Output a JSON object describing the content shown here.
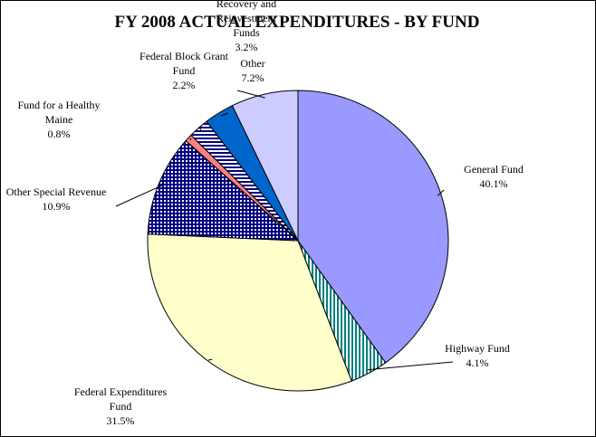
{
  "chart_data": {
    "type": "pie",
    "title": "FY 2008 ACTUAL EXPENDITURES - BY FUND",
    "slices": [
      {
        "label": [
          "General Fund"
        ],
        "pct": "40.1%",
        "value": 40.1,
        "color": "#9999ff",
        "pattern": "solid"
      },
      {
        "label": [
          "Highway Fund"
        ],
        "pct": "4.1%",
        "value": 4.1,
        "color": "#008080",
        "pattern": "vertical-lines"
      },
      {
        "label": [
          "Federal Expenditures",
          "Fund"
        ],
        "pct": "31.5%",
        "value": 31.5,
        "color": "#ffffcc",
        "pattern": "solid"
      },
      {
        "label": [
          "Other Special Revenue"
        ],
        "pct": "10.9%",
        "value": 10.9,
        "color": "#000080",
        "pattern": "grid"
      },
      {
        "label": [
          "Fund for a Healthy",
          "Maine"
        ],
        "pct": "0.8%",
        "value": 0.8,
        "color": "#ff8080",
        "pattern": "solid"
      },
      {
        "label": [
          "Federal Block Grant",
          "Fund"
        ],
        "pct": "2.2%",
        "value": 2.2,
        "color": "#000080",
        "pattern": "horizontal-lines"
      },
      {
        "label": [
          "Recovery and",
          "Reinvestment",
          "Funds"
        ],
        "pct": "3.2%",
        "value": 3.2,
        "color": "#0066cc",
        "pattern": "solid"
      },
      {
        "label": [
          "Other"
        ],
        "pct": "7.2%",
        "value": 7.2,
        "color": "#ccccff",
        "pattern": "solid"
      }
    ]
  }
}
